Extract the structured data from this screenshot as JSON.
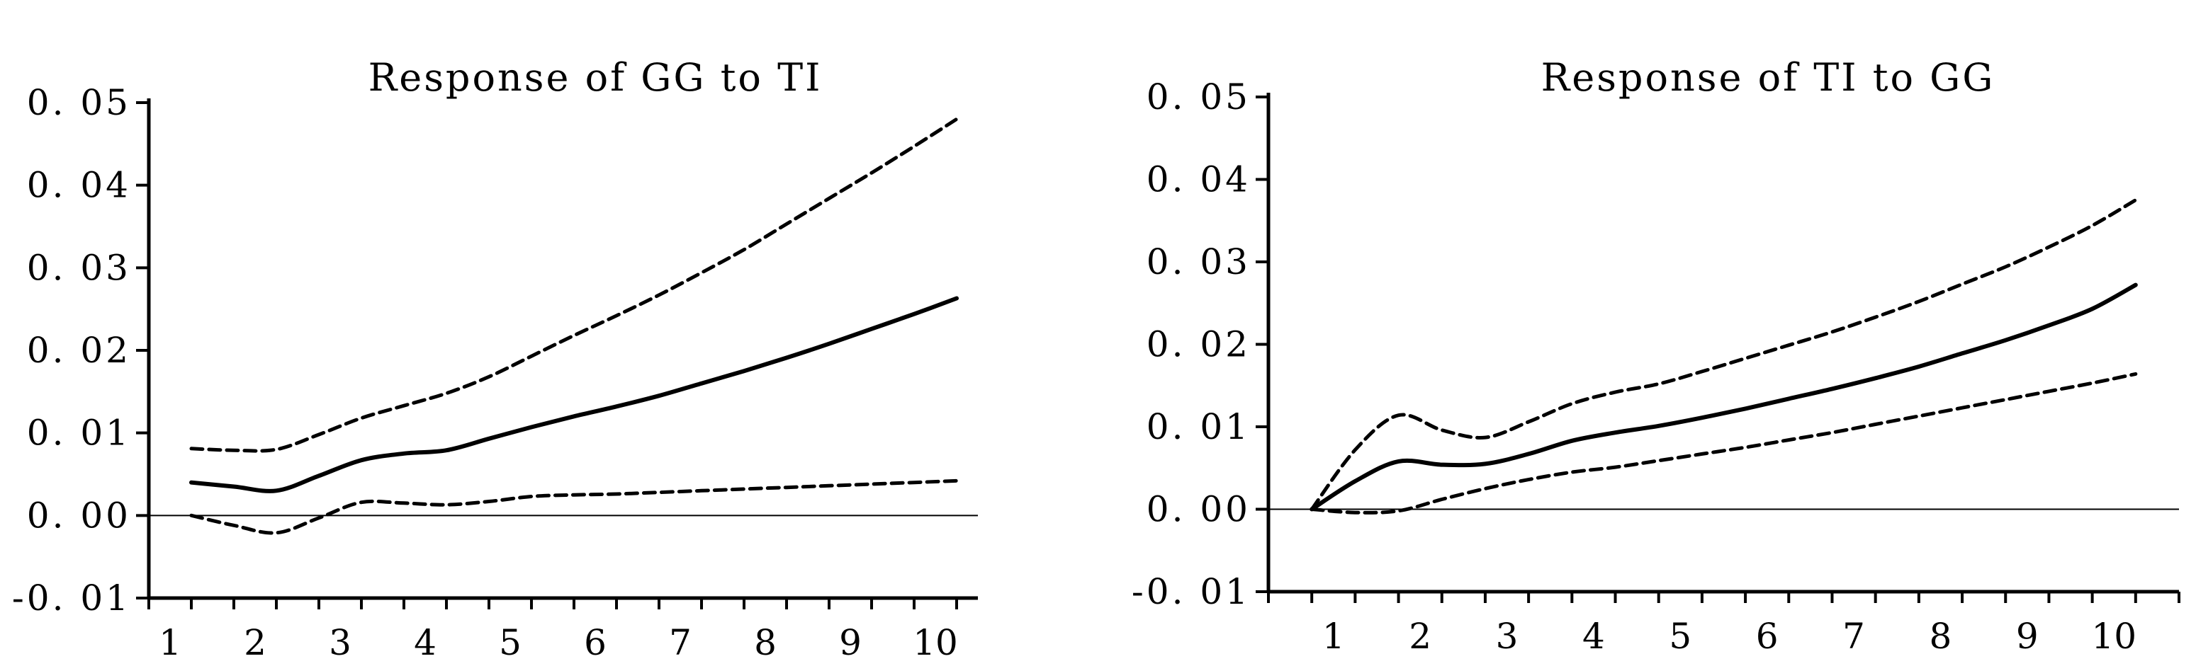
{
  "chart_data": [
    {
      "type": "line",
      "title": "Response of GG to TI",
      "xlabel": "",
      "ylabel": "",
      "x_ticks": [
        "1",
        "2",
        "3",
        "4",
        "5",
        "6",
        "7",
        "8",
        "9",
        "10"
      ],
      "y_ticks": [
        "0. 05",
        "0. 04",
        "0. 03",
        "0. 02",
        "0. 01",
        "0. 00",
        "-0. 01"
      ],
      "xlim": [
        0.75,
        10.5
      ],
      "ylim": [
        -0.01,
        0.05
      ],
      "zero_line": true,
      "grid": false,
      "series": [
        {
          "style": "solid",
          "x": [
            1.25,
            1.75,
            2.25,
            2.75,
            3.25,
            3.75,
            4.25,
            4.75,
            5.25,
            5.75,
            6.25,
            6.75,
            7.25,
            7.75,
            8.25,
            8.75,
            9.25,
            9.75,
            10.25
          ],
          "values": [
            0.004,
            0.0035,
            0.003,
            0.0048,
            0.0067,
            0.0075,
            0.0079,
            0.0093,
            0.0107,
            0.012,
            0.0132,
            0.0145,
            0.016,
            0.0175,
            0.0191,
            0.0208,
            0.0226,
            0.0244,
            0.0263
          ]
        },
        {
          "style": "dashed",
          "x": [
            1.25,
            1.75,
            2.25,
            2.75,
            3.25,
            3.75,
            4.25,
            4.75,
            5.25,
            5.75,
            6.25,
            6.75,
            7.25,
            7.75,
            8.25,
            8.75,
            9.25,
            9.75,
            10.25
          ],
          "values": [
            0.0081,
            0.0079,
            0.008,
            0.0098,
            0.0118,
            0.0133,
            0.0148,
            0.0168,
            0.0193,
            0.0218,
            0.0242,
            0.0267,
            0.0294,
            0.0322,
            0.0353,
            0.0384,
            0.0415,
            0.0447,
            0.048
          ]
        },
        {
          "style": "dashed",
          "x": [
            1.25,
            1.75,
            2.25,
            2.75,
            3.25,
            3.75,
            4.25,
            4.75,
            5.25,
            5.75,
            6.25,
            6.75,
            7.25,
            7.75,
            8.25,
            8.75,
            9.25,
            9.75,
            10.25
          ],
          "values": [
            0.0,
            -0.0012,
            -0.0021,
            -0.0003,
            0.0016,
            0.0015,
            0.0013,
            0.0017,
            0.0023,
            0.0025,
            0.0026,
            0.0028,
            0.003,
            0.0032,
            0.0034,
            0.0036,
            0.0038,
            0.004,
            0.0042
          ]
        }
      ]
    },
    {
      "type": "line",
      "title": "Response of TI to GG",
      "xlabel": "",
      "ylabel": "",
      "x_ticks": [
        "1",
        "2",
        "3",
        "4",
        "5",
        "6",
        "7",
        "8",
        "9",
        "10"
      ],
      "y_ticks": [
        "0. 05",
        "0. 04",
        "0. 03",
        "0. 02",
        "0. 01",
        "0. 00",
        "-0. 01"
      ],
      "xlim": [
        0.25,
        10.75
      ],
      "ylim": [
        -0.01,
        0.05
      ],
      "zero_line": true,
      "grid": false,
      "series": [
        {
          "style": "solid",
          "x": [
            0.75,
            1.25,
            1.75,
            2.25,
            2.75,
            3.25,
            3.75,
            4.25,
            4.75,
            5.25,
            5.75,
            6.25,
            6.75,
            7.25,
            7.75,
            8.25,
            8.75,
            9.25,
            9.75,
            10.25
          ],
          "values": [
            0.0,
            0.0034,
            0.0058,
            0.0054,
            0.0055,
            0.0067,
            0.0083,
            0.0093,
            0.0101,
            0.0111,
            0.0122,
            0.0134,
            0.0146,
            0.0159,
            0.0173,
            0.0189,
            0.0205,
            0.0223,
            0.0243,
            0.0272
          ]
        },
        {
          "style": "dashed",
          "x": [
            0.75,
            1.25,
            1.75,
            2.25,
            2.75,
            3.25,
            3.75,
            4.25,
            4.75,
            5.25,
            5.75,
            6.25,
            6.75,
            7.25,
            7.75,
            8.25,
            8.75,
            9.25,
            9.75,
            10.25
          ],
          "values": [
            0.0,
            0.0072,
            0.0114,
            0.0096,
            0.0087,
            0.0106,
            0.0128,
            0.0142,
            0.0152,
            0.0167,
            0.0183,
            0.0199,
            0.0215,
            0.0233,
            0.0252,
            0.0273,
            0.0294,
            0.0318,
            0.0344,
            0.0375
          ]
        },
        {
          "style": "dashed",
          "x": [
            0.75,
            1.25,
            1.75,
            2.25,
            2.75,
            3.25,
            3.75,
            4.25,
            4.75,
            5.25,
            5.75,
            6.25,
            6.75,
            7.25,
            7.75,
            8.25,
            8.75,
            9.25,
            9.75,
            10.25
          ],
          "values": [
            0.0,
            -0.0004,
            -0.0002,
            0.0012,
            0.0025,
            0.0036,
            0.0045,
            0.0051,
            0.0059,
            0.0067,
            0.0075,
            0.0084,
            0.0093,
            0.0103,
            0.0113,
            0.0123,
            0.0133,
            0.0143,
            0.0153,
            0.0164
          ]
        }
      ]
    }
  ]
}
